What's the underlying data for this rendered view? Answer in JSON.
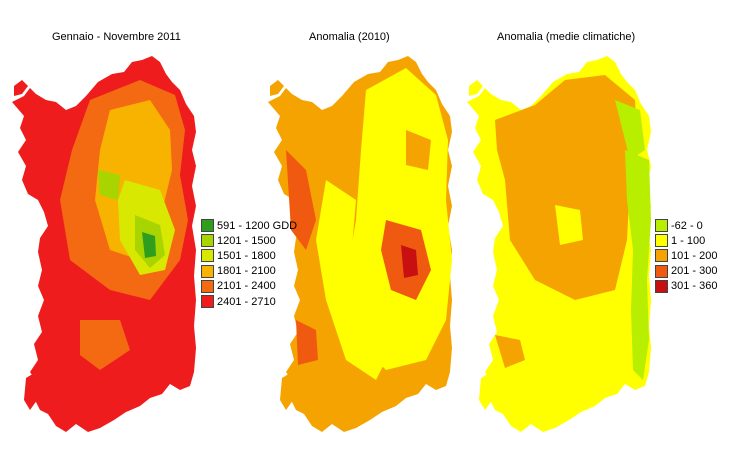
{
  "titles": {
    "map1": "Gennaio - Novembre 2011",
    "map2": "Anomalia (2010)",
    "map3": "Anomalia (medie climatiche)"
  },
  "legend_gdd": [
    {
      "label": "591 - 1200 GDD",
      "color": "#2f9e1e"
    },
    {
      "label": "1201 - 1500",
      "color": "#a8d400"
    },
    {
      "label": "1501 - 1800",
      "color": "#d9e800"
    },
    {
      "label": "1801 - 2100",
      "color": "#f7b300"
    },
    {
      "label": "2101 - 2400",
      "color": "#f46a12"
    },
    {
      "label": "2401 - 2710",
      "color": "#ee1c1c"
    }
  ],
  "legend_anomaly": [
    {
      "label": "-62 - 0",
      "color": "#b8ef00"
    },
    {
      "label": "1 - 100",
      "color": "#ffff00"
    },
    {
      "label": "101 - 200",
      "color": "#f5a300"
    },
    {
      "label": "201 - 300",
      "color": "#f05a10"
    },
    {
      "label": "301 - 360",
      "color": "#c81010"
    }
  ]
}
